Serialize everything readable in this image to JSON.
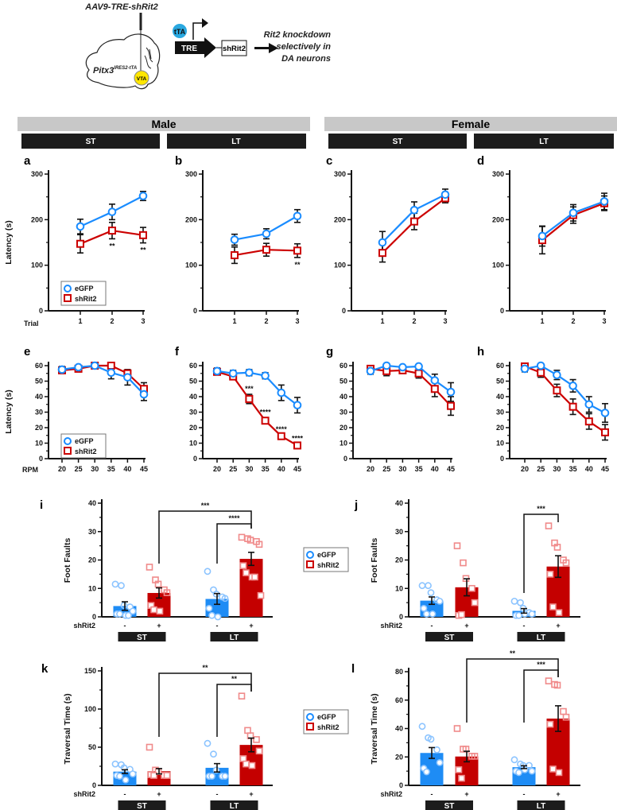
{
  "diagram": {
    "vector": "AAV9-TRE-shRit2",
    "mouse_line": "Pitx3",
    "mouse_line_sup": "IRES2-tTA",
    "region": "VTA",
    "activator": "tTA",
    "promoter": "TRE",
    "construct": "shRit2",
    "outcome": [
      "Rit2 knockdown",
      "selectively in",
      "DA neurons"
    ]
  },
  "headers": {
    "male": "Male",
    "female": "Female",
    "conditions": [
      "ST",
      "LT",
      "ST",
      "LT"
    ]
  },
  "legend": {
    "egfp": "eGFP",
    "shrit2": "shRit2"
  },
  "colors": {
    "egfp": "#1a8cff",
    "shrit2": "#cc0000",
    "egfp_bar": "#1e8cf5",
    "shrit2_bar": "#c40000",
    "egfp_point": "#8cc4ff",
    "shrit2_point": "#f08a8a",
    "header_gray": "#c8c8c8"
  },
  "chart_data": [
    {
      "panel": "a",
      "type": "line",
      "sex": "Male",
      "condition": "ST",
      "xlabel": "Trial",
      "ylabel": "Latency (s)",
      "x": [
        1,
        2,
        3
      ],
      "ylim": [
        0,
        300
      ],
      "yticks": [
        0,
        100,
        200,
        300
      ],
      "series": [
        {
          "name": "eGFP",
          "values": [
            185,
            217,
            252
          ],
          "sem": [
            16,
            17,
            10
          ]
        },
        {
          "name": "shRit2",
          "values": [
            147,
            176,
            166
          ],
          "sem": [
            20,
            18,
            17
          ],
          "significance": [
            "",
            "**",
            "**"
          ]
        }
      ]
    },
    {
      "panel": "b",
      "type": "line",
      "sex": "Male",
      "condition": "LT",
      "x": [
        1,
        2,
        3
      ],
      "ylim": [
        0,
        300
      ],
      "yticks": [
        0,
        100,
        200,
        300
      ],
      "series": [
        {
          "name": "eGFP",
          "values": [
            156,
            169,
            208
          ],
          "sem": [
            12,
            11,
            14
          ]
        },
        {
          "name": "shRit2",
          "values": [
            122,
            134,
            132
          ],
          "sem": [
            18,
            14,
            15
          ],
          "significance": [
            "",
            "",
            "**"
          ]
        }
      ]
    },
    {
      "panel": "c",
      "type": "line",
      "sex": "Female",
      "condition": "ST",
      "x": [
        1,
        2,
        3
      ],
      "ylim": [
        0,
        300
      ],
      "yticks": [
        0,
        100,
        200,
        300
      ],
      "series": [
        {
          "name": "eGFP",
          "values": [
            150,
            221,
            255
          ],
          "sem": [
            24,
            18,
            12
          ]
        },
        {
          "name": "shRit2",
          "values": [
            127,
            196,
            247
          ],
          "sem": [
            20,
            18,
            10
          ]
        }
      ]
    },
    {
      "panel": "d",
      "type": "line",
      "sex": "Female",
      "condition": "LT",
      "x": [
        1,
        2,
        3
      ],
      "ylim": [
        0,
        300
      ],
      "yticks": [
        0,
        100,
        200,
        300
      ],
      "series": [
        {
          "name": "eGFP",
          "values": [
            164,
            215,
            240
          ],
          "sem": [
            22,
            18,
            18
          ]
        },
        {
          "name": "shRit2",
          "values": [
            155,
            210,
            236
          ],
          "sem": [
            30,
            18,
            16
          ]
        }
      ]
    },
    {
      "panel": "e",
      "type": "line",
      "sex": "Male",
      "condition": "ST",
      "xlabel": "RPM",
      "ylabel": "Latency (s)",
      "x": [
        20,
        25,
        30,
        35,
        40,
        45
      ],
      "ylim": [
        0,
        60
      ],
      "yticks": [
        0,
        10,
        20,
        30,
        40,
        50,
        60
      ],
      "series": [
        {
          "name": "eGFP",
          "values": [
            57.5,
            59,
            60,
            55.5,
            52.5,
            41.5
          ],
          "sem": [
            2,
            1,
            0.5,
            4,
            5,
            4
          ]
        },
        {
          "name": "shRit2",
          "values": [
            57,
            58,
            60,
            60,
            55,
            45
          ],
          "sem": [
            2,
            1,
            0.5,
            1,
            2,
            4
          ]
        }
      ]
    },
    {
      "panel": "f",
      "type": "line",
      "sex": "Male",
      "condition": "LT",
      "x": [
        20,
        25,
        30,
        35,
        40,
        45
      ],
      "ylim": [
        0,
        60
      ],
      "yticks": [
        0,
        10,
        20,
        30,
        40,
        50,
        60
      ],
      "series": [
        {
          "name": "eGFP",
          "values": [
            56.5,
            55,
            55.5,
            53.5,
            42.5,
            34.5
          ],
          "sem": [
            2,
            2,
            2,
            2,
            5,
            5
          ]
        },
        {
          "name": "shRit2",
          "values": [
            56,
            53,
            38.5,
            24.5,
            14.5,
            8.5
          ],
          "sem": [
            2,
            2,
            3,
            2,
            1,
            1
          ],
          "significance": [
            "",
            "",
            "***",
            "****",
            "****",
            "****"
          ]
        }
      ]
    },
    {
      "panel": "g",
      "type": "line",
      "sex": "Female",
      "condition": "ST",
      "x": [
        20,
        25,
        30,
        35,
        40,
        45
      ],
      "ylim": [
        0,
        60
      ],
      "yticks": [
        0,
        10,
        20,
        30,
        40,
        50,
        60
      ],
      "series": [
        {
          "name": "eGFP",
          "values": [
            56.5,
            60,
            59,
            59.5,
            50.5,
            43
          ],
          "sem": [
            2,
            1,
            1,
            1,
            4,
            6
          ]
        },
        {
          "name": "shRit2",
          "values": [
            58,
            56.5,
            57,
            55,
            45,
            34
          ],
          "sem": [
            1,
            3,
            2,
            3,
            5,
            6
          ]
        }
      ]
    },
    {
      "panel": "h",
      "type": "line",
      "sex": "Female",
      "condition": "LT",
      "x": [
        20,
        25,
        30,
        35,
        40,
        45
      ],
      "ylim": [
        0,
        60
      ],
      "yticks": [
        0,
        10,
        20,
        30,
        40,
        50,
        60
      ],
      "series": [
        {
          "name": "eGFP",
          "values": [
            58,
            60,
            54,
            47,
            35,
            29.5
          ],
          "sem": [
            2,
            1,
            3,
            4,
            5,
            6
          ]
        },
        {
          "name": "shRit2",
          "values": [
            59.5,
            55.5,
            44,
            33.5,
            24,
            17
          ],
          "sem": [
            1,
            3,
            4,
            5,
            5,
            5
          ]
        }
      ]
    },
    {
      "panel": "i",
      "type": "bar",
      "sex": "Male",
      "ylabel": "Foot Faults",
      "ylim": [
        0,
        40
      ],
      "yticks": [
        0,
        10,
        20,
        30,
        40
      ],
      "row_label": "shRit2",
      "categories": [
        "-",
        "+",
        "-",
        "+"
      ],
      "groups": [
        "ST",
        "LT"
      ],
      "series": [
        "eGFP",
        "shRit2",
        "eGFP",
        "shRit2"
      ],
      "values": [
        3.8,
        8.4,
        6.3,
        20.4
      ],
      "sem": [
        1.5,
        1.8,
        1.9,
        2.3
      ],
      "points": [
        [
          11.5,
          11,
          4,
          3.5,
          2,
          1,
          1,
          0.5,
          0.5
        ],
        [
          17.5,
          13,
          11.5,
          9.5,
          8.5,
          4,
          2.5,
          2
        ],
        [
          16,
          9.5,
          8,
          7,
          6.5,
          3,
          0.5,
          0
        ],
        [
          28,
          27.5,
          27,
          26.5,
          25.5,
          18,
          15.5,
          14,
          14,
          7.5
        ]
      ],
      "comparisons": [
        {
          "between": [
            1,
            3
          ],
          "label": "***"
        },
        {
          "between": [
            2,
            3
          ],
          "label": "****"
        }
      ]
    },
    {
      "panel": "j",
      "type": "bar",
      "sex": "Female",
      "ylabel": "Foot Faults",
      "ylim": [
        0,
        40
      ],
      "yticks": [
        0,
        10,
        20,
        30,
        40
      ],
      "row_label": "shRit2",
      "categories": [
        "-",
        "+",
        "-",
        "+"
      ],
      "groups": [
        "ST",
        "LT"
      ],
      "series": [
        "eGFP",
        "shRit2",
        "eGFP",
        "shRit2"
      ],
      "values": [
        5.7,
        10.4,
        2.1,
        17.7
      ],
      "sem": [
        1.3,
        3,
        0.8,
        3.8
      ],
      "points": [
        [
          11,
          11,
          8.5,
          6,
          5.5,
          3,
          1,
          1
        ],
        [
          25,
          19,
          13.5,
          10,
          5,
          0.5,
          0.8
        ],
        [
          5.5,
          5,
          3,
          1.5,
          1,
          0.5,
          0.5,
          1
        ],
        [
          32,
          26,
          24.5,
          20,
          19,
          15,
          3.5,
          1.5
        ]
      ],
      "comparisons": [
        {
          "between": [
            2,
            3
          ],
          "label": "***"
        }
      ]
    },
    {
      "panel": "k",
      "type": "bar",
      "sex": "Male",
      "ylabel": "Traversal Time (s)",
      "ylim": [
        0,
        150
      ],
      "yticks": [
        0,
        50,
        100,
        150
      ],
      "row_label": "shRit2",
      "categories": [
        "-",
        "+",
        "-",
        "+"
      ],
      "groups": [
        "ST",
        "LT"
      ],
      "series": [
        "eGFP",
        "shRit2",
        "eGFP",
        "shRit2"
      ],
      "values": [
        18,
        18.5,
        23,
        53
      ],
      "sem": [
        2.5,
        3.5,
        5.5,
        9
      ],
      "points": [
        [
          28,
          27,
          23,
          21,
          15,
          13,
          12,
          7
        ],
        [
          50,
          20,
          18,
          13,
          13,
          14,
          13
        ],
        [
          55,
          41,
          20,
          12,
          12,
          12,
          12
        ],
        [
          117,
          72,
          65,
          60,
          45,
          35,
          28,
          26
        ]
      ],
      "comparisons": [
        {
          "between": [
            1,
            3
          ],
          "label": "**"
        },
        {
          "between": [
            2,
            3
          ],
          "label": "**"
        }
      ]
    },
    {
      "panel": "l",
      "type": "bar",
      "sex": "Female",
      "ylabel": "Traversal Time (s)",
      "ylim": [
        0,
        80
      ],
      "yticks": [
        0,
        20,
        40,
        60,
        80
      ],
      "row_label": "shRit2",
      "categories": [
        "-",
        "+",
        "-",
        "+"
      ],
      "groups": [
        "ST",
        "LT"
      ],
      "series": [
        "eGFP",
        "shRit2",
        "eGFP",
        "shRit2"
      ],
      "values": [
        22.8,
        20.3,
        12.8,
        47
      ],
      "sem": [
        3.8,
        3.7,
        1,
        9
      ],
      "points": [
        [
          41.5,
          33.5,
          32.5,
          25,
          16,
          12,
          9.5
        ],
        [
          40,
          25.5,
          25.5,
          20.5,
          20.5,
          11,
          5
        ],
        [
          18,
          15,
          14,
          14,
          10,
          10,
          9,
          11
        ],
        [
          73.5,
          71,
          70.5,
          52,
          48,
          43,
          11.5,
          9
        ]
      ],
      "comparisons": [
        {
          "between": [
            1,
            3
          ],
          "label": "**"
        },
        {
          "between": [
            2,
            3
          ],
          "label": "***"
        }
      ]
    }
  ]
}
